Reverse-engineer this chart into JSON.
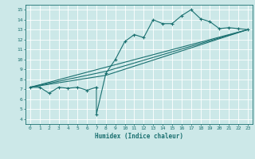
{
  "title": "",
  "xlabel": "Humidex (Indice chaleur)",
  "xlim": [
    -0.5,
    23.5
  ],
  "ylim": [
    3.5,
    15.5
  ],
  "xticks": [
    0,
    1,
    2,
    3,
    4,
    5,
    6,
    7,
    8,
    9,
    10,
    11,
    12,
    13,
    14,
    15,
    16,
    17,
    18,
    19,
    20,
    21,
    22,
    23
  ],
  "yticks": [
    4,
    5,
    6,
    7,
    8,
    9,
    10,
    11,
    12,
    13,
    14,
    15
  ],
  "bg_color": "#cce8e8",
  "grid_color": "#ffffff",
  "line_color": "#1a7070",
  "line1": [
    [
      0,
      7.2
    ],
    [
      1,
      7.2
    ],
    [
      2,
      6.6
    ],
    [
      3,
      7.2
    ],
    [
      4,
      7.1
    ],
    [
      5,
      7.2
    ],
    [
      6,
      6.9
    ],
    [
      7,
      7.2
    ],
    [
      7,
      4.5
    ],
    [
      8,
      8.6
    ],
    [
      9,
      10.0
    ],
    [
      10,
      11.8
    ],
    [
      11,
      12.5
    ],
    [
      12,
      12.2
    ],
    [
      13,
      14.0
    ],
    [
      14,
      13.6
    ],
    [
      15,
      13.6
    ],
    [
      16,
      14.4
    ],
    [
      17,
      15.0
    ],
    [
      18,
      14.1
    ],
    [
      19,
      13.8
    ],
    [
      20,
      13.1
    ],
    [
      21,
      13.2
    ],
    [
      22,
      13.1
    ],
    [
      23,
      13.0
    ]
  ],
  "line2": [
    [
      0,
      7.2
    ],
    [
      23,
      13.0
    ]
  ],
  "line3": [
    [
      0,
      7.2
    ],
    [
      8,
      8.8
    ],
    [
      23,
      13.0
    ]
  ],
  "line4": [
    [
      0,
      7.2
    ],
    [
      8,
      8.4
    ],
    [
      23,
      13.0
    ]
  ]
}
